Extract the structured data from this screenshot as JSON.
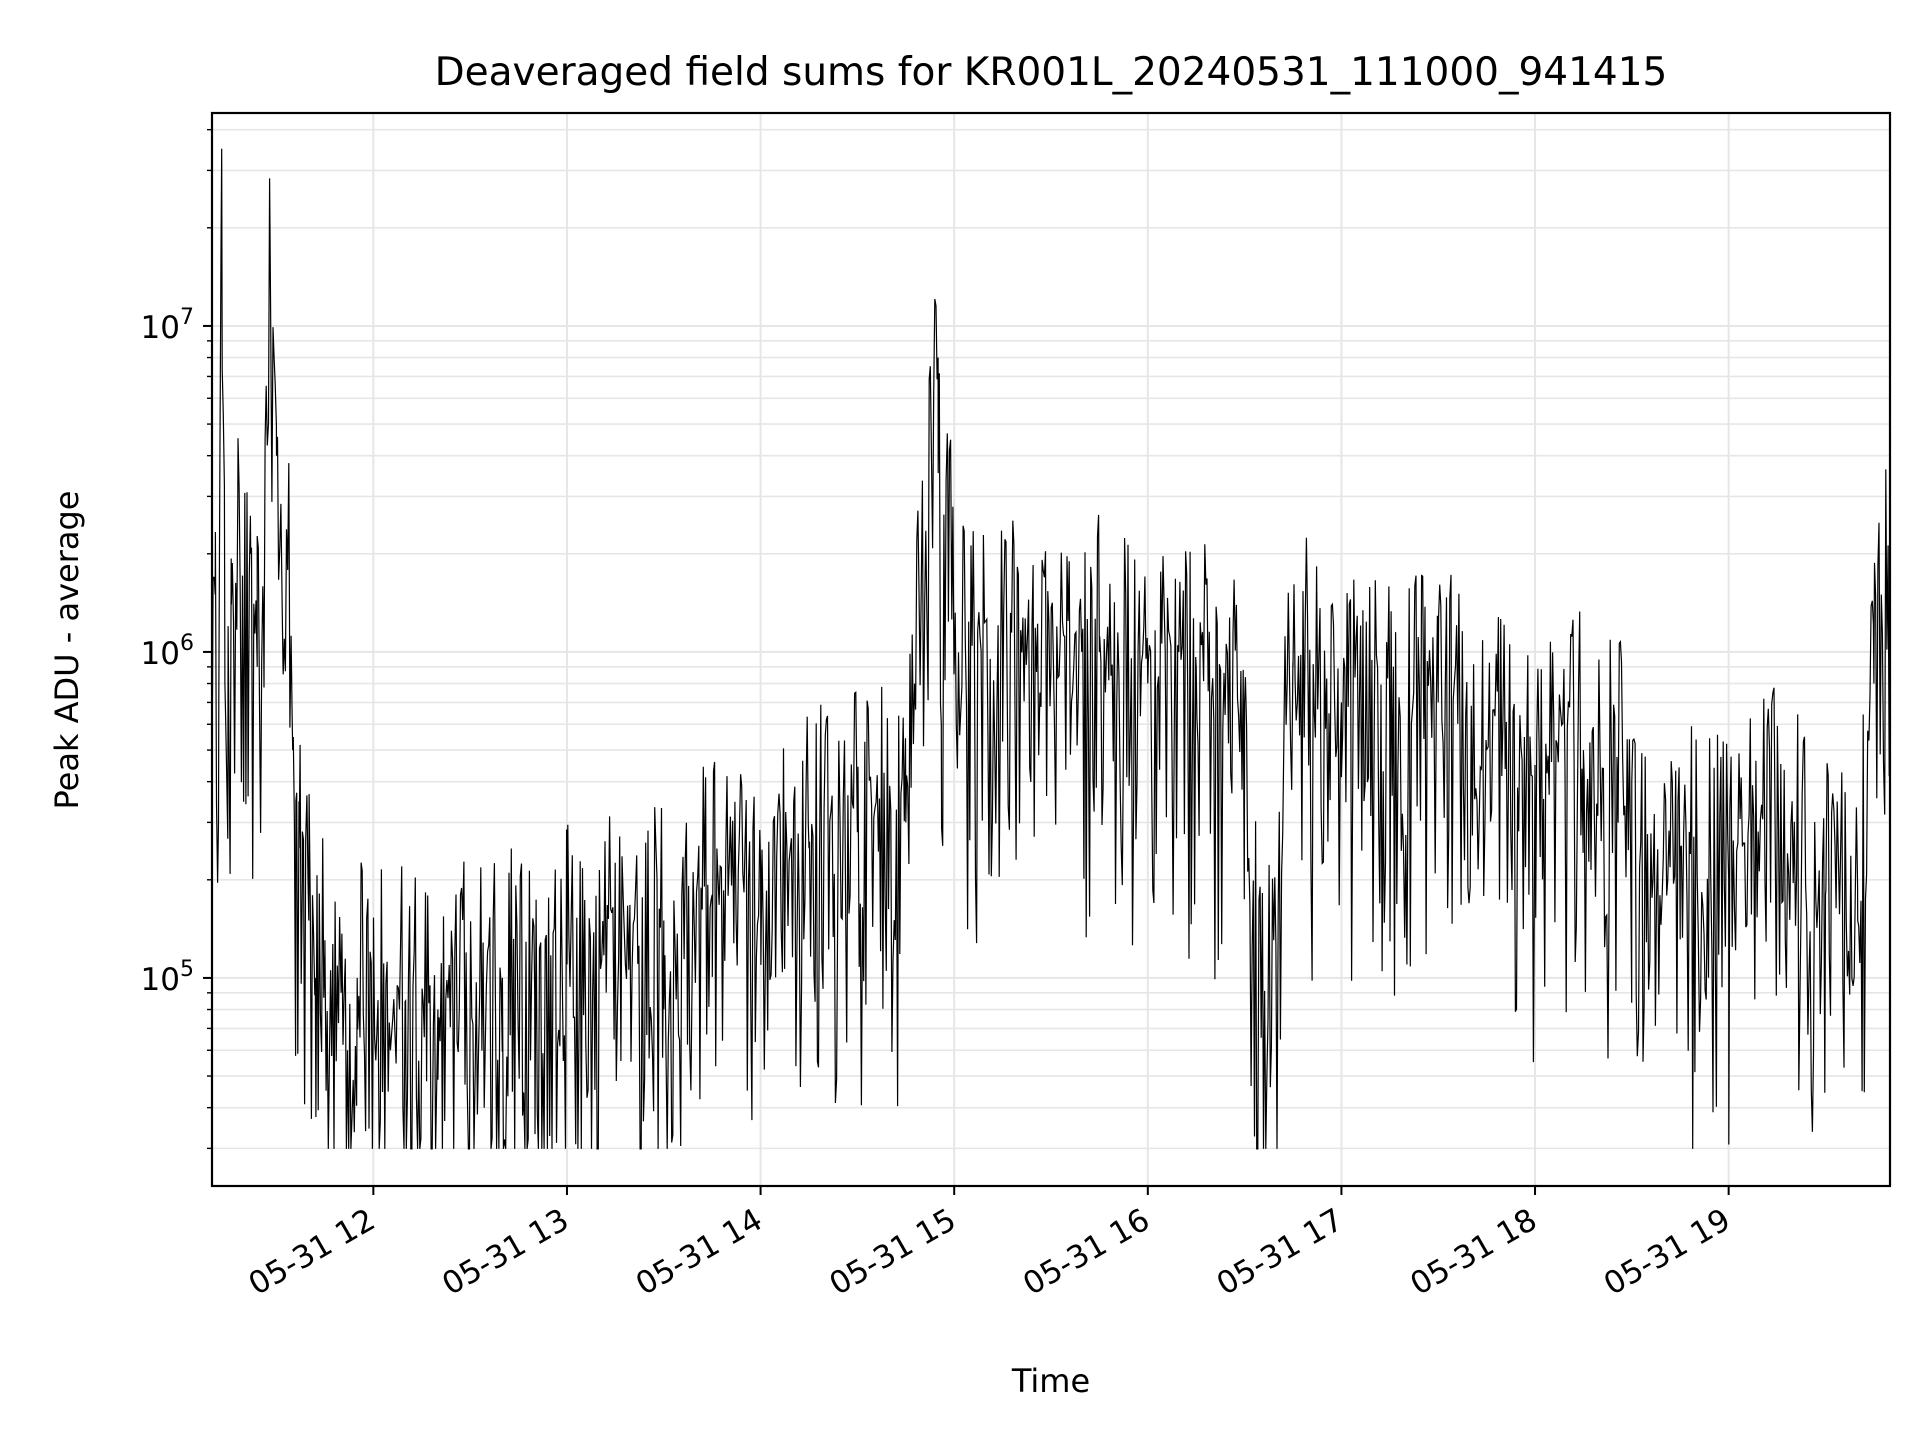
{
  "chart_data": {
    "type": "line",
    "title": "Deaveraged field sums for KR001L_20240531_111000_941415",
    "xlabel": "Time",
    "ylabel": "Peak ADU - average",
    "yscale": "log",
    "grid": true,
    "xlim": [
      "2024-05-31 11:10",
      "2024-05-31 19:50"
    ],
    "ylim": [
      23000,
      45000000
    ],
    "x_ticks": [
      "05-31 12",
      "05-31 13",
      "05-31 14",
      "05-31 15",
      "05-31 16",
      "05-31 17",
      "05-31 18",
      "05-31 19"
    ],
    "y_ticks": [
      {
        "label_base": "10",
        "label_exp": "5",
        "value": 100000
      },
      {
        "label_base": "10",
        "label_exp": "6",
        "value": 1000000
      },
      {
        "label_base": "10",
        "label_exp": "7",
        "value": 10000000
      }
    ],
    "line_color": "#000000",
    "series": [
      {
        "x": [
          "2024-05-31 11:10",
          "2024-05-31 11:11",
          "2024-05-31 11:12",
          "2024-05-31 11:13",
          "2024-05-31 11:14",
          "2024-05-31 11:15",
          "2024-05-31 11:16",
          "2024-05-31 11:18",
          "2024-05-31 11:20",
          "2024-05-31 11:22",
          "2024-05-31 11:24",
          "2024-05-31 11:26",
          "2024-05-31 11:28",
          "2024-05-31 11:30",
          "2024-05-31 11:32",
          "2024-05-31 11:34",
          "2024-05-31 11:35",
          "2024-05-31 11:36",
          "2024-05-31 11:37",
          "2024-05-31 11:38",
          "2024-05-31 11:40",
          "2024-05-31 11:42",
          "2024-05-31 11:45",
          "2024-05-31 11:48",
          "2024-05-31 11:50",
          "2024-05-31 11:52",
          "2024-05-31 11:55",
          "2024-05-31 12:00",
          "2024-05-31 12:10",
          "2024-05-31 12:20",
          "2024-05-31 12:30",
          "2024-05-31 12:40",
          "2024-05-31 12:50",
          "2024-05-31 13:00",
          "2024-05-31 13:15",
          "2024-05-31 13:30",
          "2024-05-31 13:45",
          "2024-05-31 14:00",
          "2024-05-31 14:15",
          "2024-05-31 14:30",
          "2024-05-31 14:45",
          "2024-05-31 14:55",
          "2024-05-31 14:56",
          "2024-05-31 14:58",
          "2024-05-31 15:00",
          "2024-05-31 15:15",
          "2024-05-31 15:30",
          "2024-05-31 15:45",
          "2024-05-31 16:00",
          "2024-05-31 16:15",
          "2024-05-31 16:30",
          "2024-05-31 16:36",
          "2024-05-31 16:45",
          "2024-05-31 17:00",
          "2024-05-31 17:15",
          "2024-05-31 17:30",
          "2024-05-31 17:45",
          "2024-05-31 18:00",
          "2024-05-31 18:15",
          "2024-05-31 18:30",
          "2024-05-31 18:45",
          "2024-05-31 19:00",
          "2024-05-31 19:15",
          "2024-05-31 19:30",
          "2024-05-31 19:40",
          "2024-05-31 19:45",
          "2024-05-31 19:50"
        ],
        "y": [
          400000,
          1500000,
          300000,
          35000000,
          800000,
          1200000,
          1400000,
          3000000,
          1100000,
          2000000,
          900000,
          1200000,
          18000000,
          4000000,
          900000,
          1500000,
          500000,
          350000,
          250000,
          200000,
          150000,
          100000,
          120000,
          80000,
          90000,
          60000,
          100000,
          90000,
          85000,
          80000,
          90000,
          100000,
          90000,
          110000,
          120000,
          150000,
          180000,
          220000,
          250000,
          280000,
          300000,
          8000000,
          600000,
          4000000,
          900000,
          1000000,
          900000,
          1000000,
          800000,
          900000,
          700000,
          55000,
          900000,
          700000,
          600000,
          700000,
          500000,
          450000,
          500000,
          400000,
          250000,
          200000,
          300000,
          180000,
          150000,
          800000,
          1800000
        ]
      }
    ]
  }
}
